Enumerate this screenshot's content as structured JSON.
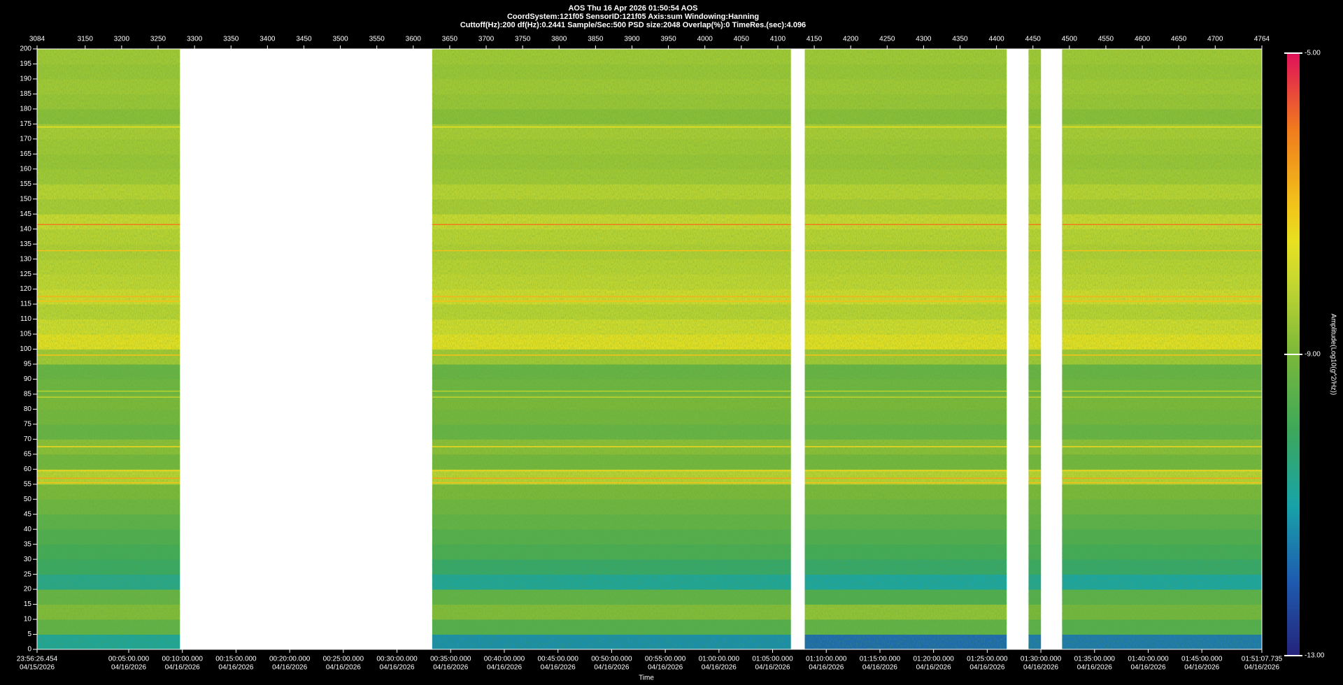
{
  "chart_data": {
    "type": "spectrogram",
    "header": [
      "AOS  Thu 16 Apr 2026 01:50:54  AOS",
      "CoordSystem:121f05    SensorID:121f05     Axis:sum     Windowing:Hanning",
      "Cuttoff(Hz):200      df(Hz):0.2441      Sample/Sec:500      PSD size:2048      Overlap(%):0      TimeRes.(sec):4.096"
    ],
    "xlabel": "Time",
    "colorbar_label": "Amplitude(Log10(g^2/Hz))",
    "xlim": [
      3084,
      4764
    ],
    "xticks": [
      3084,
      3150,
      3200,
      3250,
      3300,
      3350,
      3400,
      3450,
      3500,
      3550,
      3600,
      3650,
      3700,
      3750,
      3800,
      3850,
      3900,
      3950,
      4000,
      4050,
      4100,
      4150,
      4200,
      4250,
      4300,
      4350,
      4400,
      4450,
      4500,
      4550,
      4600,
      4650,
      4700,
      4764
    ],
    "time_ticks": [
      {
        "value": 3084,
        "label": "23:56:26.454",
        "date": "04/15/2026"
      },
      {
        "value": 3209.7,
        "label": "00:05:00.000",
        "date": "04/16/2026"
      },
      {
        "value": 3283.3,
        "label": "00:10:00.000",
        "date": "04/16/2026"
      },
      {
        "value": 3356.9,
        "label": "00:15:00.000",
        "date": "04/16/2026"
      },
      {
        "value": 3430.5,
        "label": "00:20:00.000",
        "date": "04/16/2026"
      },
      {
        "value": 3504.1,
        "label": "00:25:00.000",
        "date": "04/16/2026"
      },
      {
        "value": 3577.7,
        "label": "00:30:00.000",
        "date": "04/16/2026"
      },
      {
        "value": 3651.3,
        "label": "00:35:00.000",
        "date": "04/16/2026"
      },
      {
        "value": 3724.9,
        "label": "00:40:00.000",
        "date": "04/16/2026"
      },
      {
        "value": 3798.5,
        "label": "00:45:00.000",
        "date": "04/16/2026"
      },
      {
        "value": 3872.1,
        "label": "00:50:00.000",
        "date": "04/16/2026"
      },
      {
        "value": 3945.7,
        "label": "00:55:00.000",
        "date": "04/16/2026"
      },
      {
        "value": 4019.3,
        "label": "01:00:00.000",
        "date": "04/16/2026"
      },
      {
        "value": 4092.9,
        "label": "01:05:00.000",
        "date": "04/16/2026"
      },
      {
        "value": 4166.5,
        "label": "01:10:00.000",
        "date": "04/16/2026"
      },
      {
        "value": 4240.1,
        "label": "01:15:00.000",
        "date": "04/16/2026"
      },
      {
        "value": 4313.7,
        "label": "01:20:00.000",
        "date": "04/16/2026"
      },
      {
        "value": 4387.3,
        "label": "01:25:00.000",
        "date": "04/16/2026"
      },
      {
        "value": 4460.9,
        "label": "01:30:00.000",
        "date": "04/16/2026"
      },
      {
        "value": 4534.5,
        "label": "01:35:00.000",
        "date": "04/16/2026"
      },
      {
        "value": 4608.1,
        "label": "01:40:00.000",
        "date": "04/16/2026"
      },
      {
        "value": 4681.7,
        "label": "01:45:00.000",
        "date": "04/16/2026"
      },
      {
        "value": 4764,
        "label": "01:51:07.735",
        "date": "04/16/2026"
      }
    ],
    "ylim": [
      0,
      200
    ],
    "yticks": [
      0,
      5,
      10,
      15,
      20,
      25,
      30,
      35,
      40,
      45,
      50,
      55,
      60,
      65,
      70,
      75,
      80,
      85,
      90,
      95,
      100,
      105,
      110,
      115,
      120,
      125,
      130,
      135,
      140,
      145,
      150,
      155,
      160,
      165,
      170,
      175,
      180,
      185,
      190,
      195,
      200
    ],
    "columns": [
      [
        3084,
        3280
      ],
      [
        3626,
        4118
      ],
      [
        4137,
        4414
      ],
      [
        4444,
        4461
      ],
      [
        4490,
        4764
      ]
    ],
    "values": [
      [
        -10.8,
        -11.3,
        -11.8,
        -11.6,
        -11.6
      ],
      [
        -9.4,
        -9.6,
        -9.4,
        -9.5,
        -9.6
      ],
      [
        -8.9,
        -8.9,
        -8.7,
        -9.0,
        -9.1
      ],
      [
        -9.3,
        -9.4,
        -9.7,
        -9.6,
        -9.5
      ],
      [
        -10.6,
        -10.8,
        -10.9,
        -10.7,
        -10.9
      ],
      [
        -10.1,
        -10.2,
        -10.2,
        -10.1,
        -10.2
      ],
      [
        -9.9,
        -9.8,
        -9.9,
        -9.8,
        -9.9
      ],
      [
        -9.7,
        -9.6,
        -9.7,
        -9.6,
        -9.7
      ],
      [
        -9.5,
        -9.4,
        -9.5,
        -9.4,
        -9.5
      ],
      [
        -9.2,
        -9.2,
        -9.2,
        -9.2,
        -9.2
      ],
      [
        -9.0,
        -9.0,
        -9.0,
        -9.0,
        -9.0
      ],
      [
        -8.2,
        -8.2,
        -8.2,
        -8.2,
        -8.2
      ],
      [
        -9.1,
        -9.1,
        -9.1,
        -9.1,
        -9.1
      ],
      [
        -8.8,
        -8.8,
        -8.8,
        -8.8,
        -8.8
      ],
      [
        -9.3,
        -9.3,
        -9.3,
        -9.3,
        -9.3
      ],
      [
        -9.1,
        -9.1,
        -9.1,
        -9.1,
        -9.1
      ],
      [
        -9.0,
        -9.0,
        -9.0,
        -9.0,
        -9.0
      ],
      [
        -9.2,
        -9.2,
        -9.2,
        -9.2,
        -9.2
      ],
      [
        -9.3,
        -9.3,
        -9.3,
        -9.3,
        -9.3
      ],
      [
        -8.5,
        -8.5,
        -8.5,
        -8.5,
        -8.5
      ],
      [
        -7.6,
        -7.6,
        -7.6,
        -7.6,
        -7.6
      ],
      [
        -7.9,
        -7.9,
        -7.9,
        -7.9,
        -7.9
      ],
      [
        -8.2,
        -8.2,
        -8.2,
        -8.2,
        -8.2
      ],
      [
        -7.9,
        -7.9,
        -7.9,
        -7.9,
        -7.9
      ],
      [
        -8.1,
        -8.1,
        -8.1,
        -8.1,
        -8.1
      ],
      [
        -8.2,
        -8.2,
        -8.2,
        -8.2,
        -8.2
      ],
      [
        -8.3,
        -8.3,
        -8.3,
        -8.3,
        -8.3
      ],
      [
        -8.2,
        -8.2,
        -8.2,
        -8.2,
        -8.2
      ],
      [
        -8.0,
        -8.0,
        -8.0,
        -8.0,
        -8.0
      ],
      [
        -8.4,
        -8.4,
        -8.4,
        -8.4,
        -8.4
      ],
      [
        -8.2,
        -8.2,
        -8.2,
        -8.2,
        -8.2
      ],
      [
        -8.5,
        -8.5,
        -8.5,
        -8.5,
        -8.5
      ],
      [
        -8.6,
        -8.6,
        -8.6,
        -8.6,
        -8.6
      ],
      [
        -8.5,
        -8.5,
        -8.5,
        -8.5,
        -8.5
      ],
      [
        -8.4,
        -8.4,
        -8.4,
        -8.4,
        -8.4
      ],
      [
        -8.8,
        -8.8,
        -8.8,
        -8.8,
        -8.8
      ],
      [
        -8.6,
        -8.6,
        -8.6,
        -8.6,
        -8.6
      ],
      [
        -8.5,
        -8.5,
        -8.5,
        -8.5,
        -8.5
      ],
      [
        -8.6,
        -8.6,
        -8.6,
        -8.6,
        -8.6
      ],
      [
        -8.5,
        -8.5,
        -8.5,
        -8.5,
        -8.5
      ]
    ],
    "lines": [
      {
        "freq": 174,
        "value": -7.6
      },
      {
        "freq": 141.5,
        "value": -6.0
      },
      {
        "freq": 132.8,
        "value": -7.0
      },
      {
        "freq": 117.5,
        "value": -6.8
      },
      {
        "freq": 116,
        "value": -7.0
      },
      {
        "freq": 98,
        "value": -7.0
      },
      {
        "freq": 86,
        "value": -8.2
      },
      {
        "freq": 84,
        "value": -8.2
      },
      {
        "freq": 67.5,
        "value": -7.3
      },
      {
        "freq": 59.5,
        "value": -7.3
      },
      {
        "freq": 57,
        "value": -6.6
      },
      {
        "freq": 55.5,
        "value": -7.0
      }
    ],
    "clim": [
      -13,
      -5
    ],
    "cticks": [
      {
        "value": -5,
        "label": "-5.00"
      },
      {
        "value": -9,
        "label": "-9.00"
      },
      {
        "value": -13,
        "label": "-13.00"
      }
    ],
    "colorscale": [
      {
        "value": -13,
        "color": "#24247a"
      },
      {
        "value": -12,
        "color": "#1e5cb0"
      },
      {
        "value": -11,
        "color": "#18a3a8"
      },
      {
        "value": -10,
        "color": "#3da85a"
      },
      {
        "value": -9,
        "color": "#7ab83a"
      },
      {
        "value": -8,
        "color": "#c8d830"
      },
      {
        "value": -7.5,
        "color": "#e8e020"
      },
      {
        "value": -7,
        "color": "#f2c21a"
      },
      {
        "value": -6,
        "color": "#f07a1e"
      },
      {
        "value": -5,
        "color": "#e0105a"
      }
    ]
  }
}
